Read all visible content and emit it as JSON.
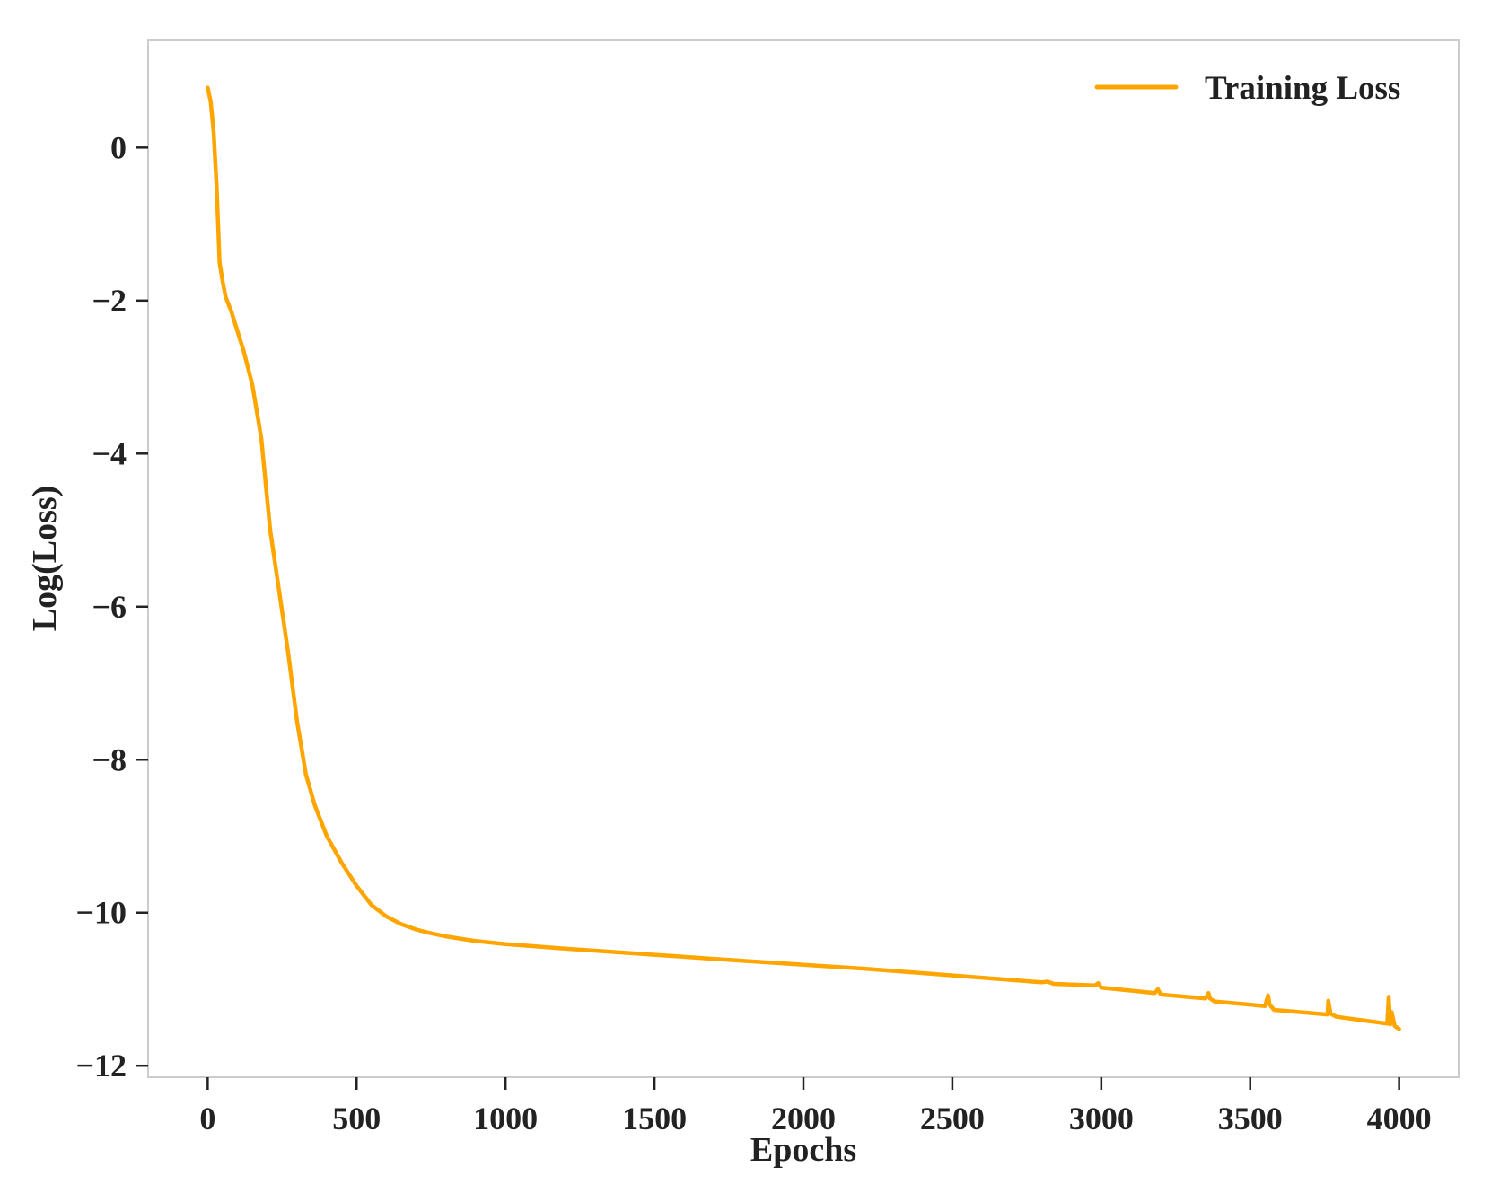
{
  "chart_data": {
    "type": "line",
    "title": "",
    "xlabel": "Epochs",
    "ylabel": "Log(Loss)",
    "xlim": [
      -200,
      4200
    ],
    "ylim": [
      -12.15,
      1.4
    ],
    "xticks": [
      0,
      500,
      1000,
      1500,
      2000,
      2500,
      3000,
      3500,
      4000
    ],
    "yticks": [
      0,
      -2,
      -4,
      -6,
      -8,
      -10,
      -12
    ],
    "ytick_labels": [
      "0",
      "−2",
      "−4",
      "−6",
      "−8",
      "−10",
      "−12"
    ],
    "grid": false,
    "legend_position": "top-right",
    "series": [
      {
        "name": "Training Loss",
        "color": "#FFA500",
        "x": [
          0,
          10,
          20,
          30,
          40,
          50,
          60,
          70,
          80,
          100,
          120,
          150,
          180,
          210,
          240,
          270,
          300,
          330,
          360,
          400,
          450,
          500,
          550,
          600,
          650,
          700,
          750,
          800,
          900,
          1000,
          1200,
          1500,
          1800,
          2000,
          2200,
          2500,
          2800,
          2820,
          2840,
          2980,
          2990,
          3000,
          3180,
          3190,
          3200,
          3350,
          3360,
          3365,
          3380,
          3550,
          3560,
          3565,
          3580,
          3760,
          3762,
          3770,
          3790,
          3960,
          3965,
          3970,
          3975,
          3985,
          4000
        ],
        "y": [
          0.78,
          0.6,
          0.2,
          -0.5,
          -1.5,
          -1.75,
          -1.95,
          -2.05,
          -2.15,
          -2.4,
          -2.65,
          -3.1,
          -3.8,
          -5.0,
          -5.8,
          -6.6,
          -7.5,
          -8.2,
          -8.6,
          -9.0,
          -9.35,
          -9.65,
          -9.9,
          -10.05,
          -10.15,
          -10.22,
          -10.27,
          -10.31,
          -10.37,
          -10.41,
          -10.47,
          -10.55,
          -10.63,
          -10.68,
          -10.73,
          -10.82,
          -10.91,
          -10.9,
          -10.93,
          -10.95,
          -10.92,
          -10.98,
          -11.05,
          -11.0,
          -11.07,
          -11.12,
          -11.05,
          -11.12,
          -11.16,
          -11.22,
          -11.08,
          -11.2,
          -11.27,
          -11.33,
          -11.15,
          -11.32,
          -11.36,
          -11.45,
          -11.1,
          -11.46,
          -11.3,
          -11.48,
          -11.52
        ]
      }
    ]
  }
}
